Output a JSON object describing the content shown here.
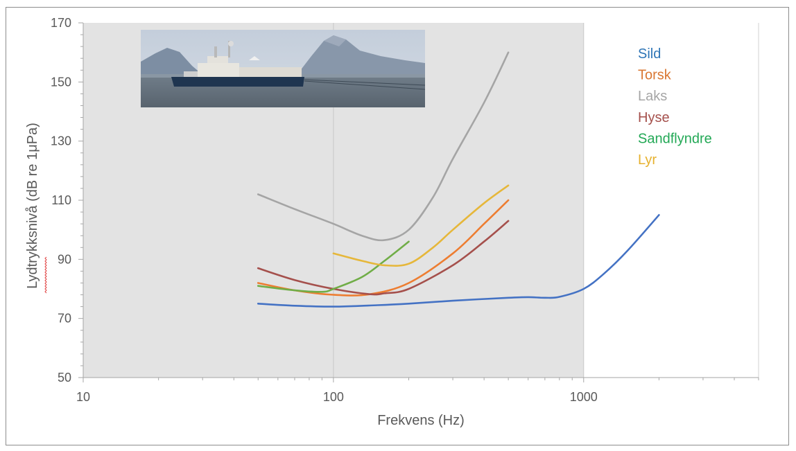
{
  "chart_data": {
    "type": "line",
    "title": "",
    "xlabel": "Frekvens (Hz)",
    "ylabel": "Lydtrykksnivå (dB re 1μPa)",
    "xscale": "log",
    "xlim": [
      10,
      5000
    ],
    "ylim": [
      50,
      170
    ],
    "xticks": [
      10,
      100,
      1000
    ],
    "xtick_labels": [
      "10",
      "100",
      "1000"
    ],
    "yticks": [
      50,
      70,
      90,
      110,
      130,
      150,
      170
    ],
    "ytick_labels": [
      "50",
      "70",
      "90",
      "110",
      "130",
      "150",
      "170"
    ],
    "grid": "x-major",
    "shaded_x_range": [
      10,
      1000
    ],
    "legend_position": "top-right",
    "image": {
      "description": "seismic survey vessel",
      "icon": "ship-photo"
    },
    "series": [
      {
        "name": "Sild",
        "color": "#4472c4",
        "points": [
          [
            50,
            75
          ],
          [
            70,
            74.3
          ],
          [
            100,
            74
          ],
          [
            150,
            74.5
          ],
          [
            200,
            75
          ],
          [
            300,
            76
          ],
          [
            500,
            77
          ],
          [
            600,
            77.2
          ],
          [
            700,
            77
          ],
          [
            800,
            77.3
          ],
          [
            1000,
            80
          ],
          [
            1200,
            85
          ],
          [
            1500,
            93
          ],
          [
            2000,
            105
          ]
        ]
      },
      {
        "name": "Torsk",
        "color": "#ed7d31",
        "points": [
          [
            50,
            82
          ],
          [
            70,
            79.5
          ],
          [
            100,
            78
          ],
          [
            140,
            78.2
          ],
          [
            200,
            82
          ],
          [
            300,
            92
          ],
          [
            400,
            102
          ],
          [
            500,
            110
          ]
        ]
      },
      {
        "name": "Laks",
        "color": "#a5a5a5",
        "points": [
          [
            50,
            112
          ],
          [
            70,
            107
          ],
          [
            100,
            102
          ],
          [
            130,
            98
          ],
          [
            160,
            96.5
          ],
          [
            200,
            100
          ],
          [
            250,
            111
          ],
          [
            300,
            124
          ],
          [
            400,
            143
          ],
          [
            500,
            160
          ]
        ]
      },
      {
        "name": "Hyse",
        "color": "#a5504c",
        "points": [
          [
            50,
            87
          ],
          [
            70,
            83
          ],
          [
            100,
            80
          ],
          [
            140,
            78.2
          ],
          [
            160,
            78.5
          ],
          [
            200,
            80
          ],
          [
            300,
            88
          ],
          [
            400,
            96
          ],
          [
            500,
            103
          ]
        ]
      },
      {
        "name": "Sandflyndre",
        "color": "#70ad47",
        "points": [
          [
            50,
            81
          ],
          [
            70,
            79.5
          ],
          [
            90,
            79
          ],
          [
            100,
            80
          ],
          [
            130,
            84
          ],
          [
            160,
            89.5
          ],
          [
            200,
            96
          ]
        ]
      },
      {
        "name": "Lyr",
        "color": "#e6b73a",
        "points": [
          [
            100,
            92
          ],
          [
            130,
            89.5
          ],
          [
            160,
            88
          ],
          [
            200,
            88.5
          ],
          [
            250,
            94
          ],
          [
            300,
            100
          ],
          [
            400,
            109
          ],
          [
            500,
            115
          ]
        ]
      }
    ],
    "legend": [
      {
        "label": "Sild",
        "color": "#2e75b6"
      },
      {
        "label": "Torsk",
        "color": "#d97732"
      },
      {
        "label": "Laks",
        "color": "#a5a5a5"
      },
      {
        "label": "Hyse",
        "color": "#a5504c"
      },
      {
        "label": "Sandflyndre",
        "color": "#22a855"
      },
      {
        "label": "Lyr",
        "color": "#e6b12e"
      }
    ]
  }
}
